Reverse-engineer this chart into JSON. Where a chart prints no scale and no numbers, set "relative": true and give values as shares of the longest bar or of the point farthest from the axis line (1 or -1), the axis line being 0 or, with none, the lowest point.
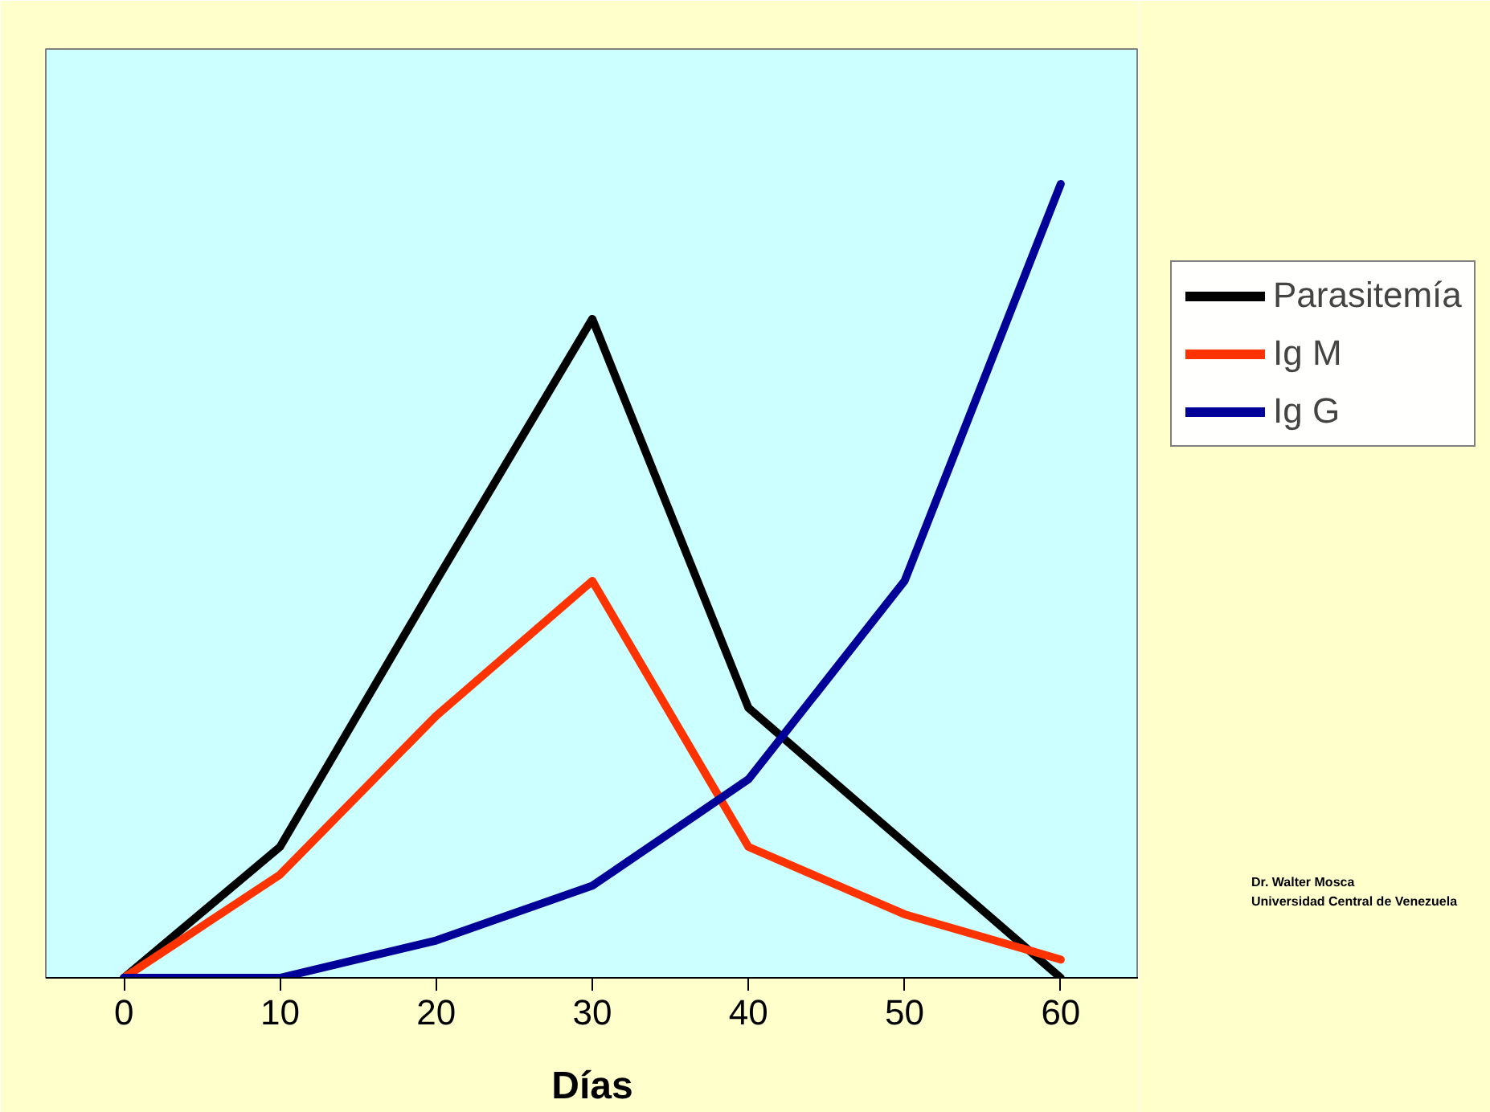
{
  "chart_data": {
    "type": "line",
    "relative": true,
    "xlabel": "Días",
    "categories": [
      "0",
      "10",
      "20",
      "30",
      "40",
      "50",
      "60"
    ],
    "series": [
      {
        "name": "Parasitemía",
        "color": "#000000",
        "values": [
          0,
          0.165,
          0.5,
          0.83,
          0.34,
          0.17,
          0
        ]
      },
      {
        "name": "Ig M",
        "color": "#ff3300",
        "values": [
          0,
          0.13,
          0.33,
          0.5,
          0.165,
          0.08,
          0.023
        ]
      },
      {
        "name": "Ig G",
        "color": "#000099",
        "values": [
          0,
          0,
          0.047,
          0.116,
          0.25,
          0.5,
          1
        ]
      }
    ],
    "legend": "right",
    "grid": false,
    "marker": "none",
    "line_style": "solid",
    "annotations": [
      "Dr. Walter Mosca",
      "Universidad Central de Venezuela"
    ]
  }
}
